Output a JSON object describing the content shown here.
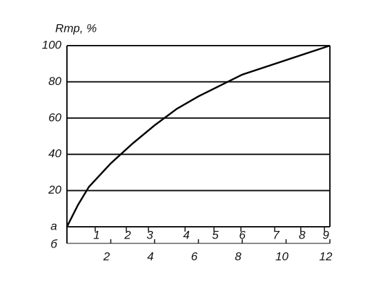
{
  "chart_data": {
    "type": "line",
    "ylabel": "Rтр, %",
    "x": [
      0,
      0.5,
      1,
      2,
      3,
      4,
      5,
      6,
      7,
      8,
      9,
      10,
      11,
      12
    ],
    "series": [
      {
        "color": "#000000",
        "values": [
          0,
          12,
          22,
          35,
          46,
          56,
          65,
          72,
          78,
          84,
          88,
          92,
          96,
          100
        ]
      }
    ],
    "xlim": [
      0,
      12
    ],
    "ylim": [
      0,
      100
    ],
    "yticks": [
      20,
      40,
      60,
      80,
      100
    ],
    "xlabel": "б",
    "xticks": [
      2,
      4,
      6,
      8,
      10,
      12
    ],
    "x2label": "а",
    "x2ticks": [
      {
        "value": 1.29,
        "label": "1"
      },
      {
        "value": 2.71,
        "label": "2"
      },
      {
        "value": 3.72,
        "label": "3"
      },
      {
        "value": 5.39,
        "label": "4"
      },
      {
        "value": 6.71,
        "label": "5"
      },
      {
        "value": 7.94,
        "label": "6"
      },
      {
        "value": 9.48,
        "label": "7"
      },
      {
        "value": 10.67,
        "label": "8"
      },
      {
        "value": 11.75,
        "label": "9"
      }
    ],
    "grid": true
  }
}
